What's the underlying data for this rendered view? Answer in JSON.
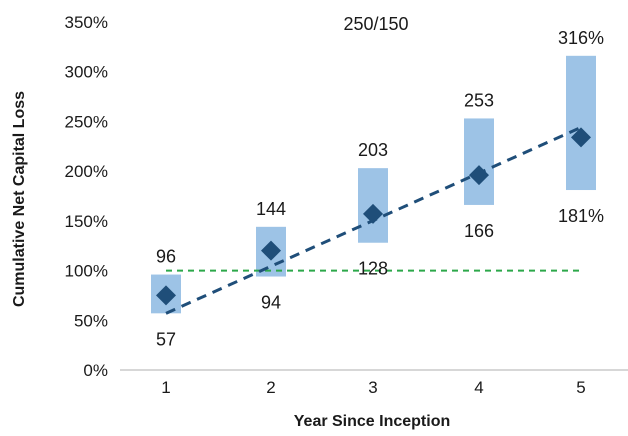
{
  "chart_data": {
    "type": "range-box-with-trend",
    "title": "",
    "annotation": "250/150",
    "xlabel": "Year Since Inception",
    "ylabel": "Cumulative Net Capital Loss",
    "ylim": [
      0,
      350
    ],
    "yticks": [
      0,
      50,
      100,
      150,
      200,
      250,
      300,
      350
    ],
    "ytick_labels": [
      "0%",
      "50%",
      "100%",
      "150%",
      "200%",
      "250%",
      "300%",
      "350%"
    ],
    "categories": [
      "1",
      "2",
      "3",
      "4",
      "5"
    ],
    "series": [
      {
        "name": "",
        "kind": "range",
        "low": [
          57,
          94,
          128,
          166,
          181
        ],
        "high": [
          96,
          144,
          203,
          253,
          316
        ],
        "low_labels": [
          "57",
          "94",
          "128",
          "166",
          "181%"
        ],
        "high_labels": [
          "96",
          "144",
          "203",
          "253",
          "316%"
        ],
        "color": "#9dc3e6"
      },
      {
        "name": "",
        "kind": "point",
        "values": [
          75,
          120,
          157,
          196,
          234
        ],
        "color": "#1f4e79"
      },
      {
        "name": "",
        "kind": "trend",
        "start": {
          "x": 1,
          "y": 57
        },
        "end": {
          "x": 5,
          "y": 244
        },
        "color": "#1f4e79"
      },
      {
        "name": "",
        "kind": "reference",
        "value": 100,
        "x_range": [
          1,
          5
        ],
        "color": "#2ca84a"
      }
    ],
    "grid": false,
    "legend": "none"
  }
}
